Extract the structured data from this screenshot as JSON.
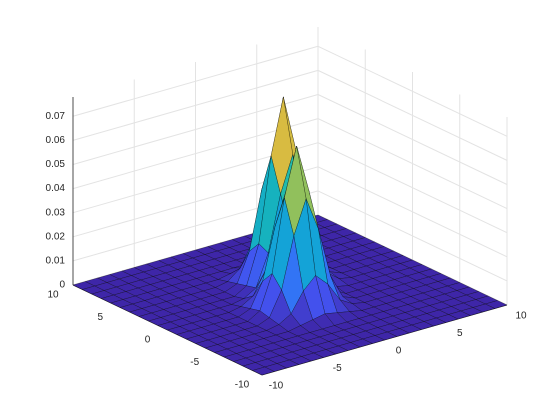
{
  "chart_data": {
    "type": "surface",
    "x": [
      -10,
      -9,
      -8,
      -7,
      -6,
      -5,
      -4,
      -3,
      -2,
      -1,
      0,
      1,
      2,
      3,
      4,
      5,
      6,
      7,
      8,
      9,
      10
    ],
    "y": [
      -10,
      -9,
      -8,
      -7,
      -6,
      -5,
      -4,
      -3,
      -2,
      -1,
      0,
      1,
      2,
      3,
      4,
      5,
      6,
      7,
      8,
      9,
      10
    ],
    "z": [
      [
        0,
        0,
        0,
        0,
        0,
        0,
        0,
        0,
        0,
        0,
        0,
        0,
        0,
        0,
        0,
        0,
        0,
        0,
        0,
        0,
        0
      ],
      [
        0,
        0,
        0,
        0,
        0,
        0,
        0,
        0,
        0,
        0,
        0,
        0,
        0,
        0,
        0,
        0,
        0,
        0,
        0,
        0,
        0
      ],
      [
        0,
        0,
        0,
        0,
        0,
        0,
        0,
        0,
        0,
        0,
        0,
        0,
        0,
        0,
        0,
        0,
        0,
        0,
        0,
        0,
        0
      ],
      [
        0,
        0,
        0,
        0,
        0,
        0,
        0,
        0,
        0,
        0,
        0,
        0,
        0,
        0,
        0,
        0,
        0,
        0,
        0,
        0,
        0
      ],
      [
        0,
        0,
        0,
        0,
        0,
        0,
        0,
        0,
        0,
        0,
        0,
        0,
        0,
        0,
        0,
        0,
        0,
        0,
        0,
        0,
        0
      ],
      [
        0,
        0,
        0,
        0,
        0,
        0,
        0,
        0.001,
        0.002,
        0.003,
        0.002,
        0.001,
        0,
        0,
        0,
        0,
        0,
        0,
        0,
        0,
        0
      ],
      [
        0,
        0,
        0,
        0,
        0,
        0,
        0.001,
        0.004,
        0.012,
        0.017,
        0.012,
        0.004,
        0.001,
        0,
        0,
        0,
        0,
        0,
        0,
        0,
        0
      ],
      [
        0,
        0,
        0,
        0,
        0,
        0,
        0.002,
        0.012,
        0.033,
        0.047,
        0.033,
        0.012,
        0.002,
        0,
        0,
        0,
        0,
        0,
        0,
        0,
        0
      ],
      [
        0,
        0,
        0,
        0,
        0,
        0,
        0.003,
        0.017,
        0.047,
        0.067,
        0.047,
        0.017,
        0.003,
        0,
        0,
        0,
        0,
        0,
        0,
        0,
        0
      ],
      [
        0,
        0,
        0,
        0,
        0,
        0,
        0.002,
        0.012,
        0.033,
        0.048,
        0.035,
        0.015,
        0.004,
        0.001,
        0,
        0,
        0,
        0,
        0,
        0,
        0
      ],
      [
        0,
        0,
        0,
        0,
        0,
        0,
        0.001,
        0.004,
        0.013,
        0.022,
        0.026,
        0.023,
        0.015,
        0.005,
        0.001,
        0,
        0,
        0,
        0,
        0,
        0
      ],
      [
        0,
        0,
        0,
        0,
        0,
        0,
        0,
        0.001,
        0.004,
        0.017,
        0.04,
        0.055,
        0.038,
        0.014,
        0.002,
        0,
        0,
        0,
        0,
        0,
        0
      ],
      [
        0,
        0,
        0,
        0,
        0,
        0,
        0,
        0,
        0.003,
        0.019,
        0.054,
        0.077,
        0.054,
        0.019,
        0.003,
        0,
        0,
        0,
        0,
        0,
        0
      ],
      [
        0,
        0,
        0,
        0,
        0,
        0,
        0,
        0,
        0.002,
        0.014,
        0.038,
        0.054,
        0.038,
        0.014,
        0.002,
        0,
        0,
        0,
        0,
        0,
        0
      ],
      [
        0,
        0,
        0,
        0,
        0,
        0,
        0,
        0,
        0.001,
        0.005,
        0.014,
        0.019,
        0.014,
        0.005,
        0.001,
        0,
        0,
        0,
        0,
        0,
        0
      ],
      [
        0,
        0,
        0,
        0,
        0,
        0,
        0,
        0,
        0,
        0.001,
        0.002,
        0.003,
        0.002,
        0.001,
        0,
        0,
        0,
        0,
        0,
        0,
        0
      ],
      [
        0,
        0,
        0,
        0,
        0,
        0,
        0,
        0,
        0,
        0,
        0,
        0,
        0,
        0,
        0,
        0,
        0,
        0,
        0,
        0,
        0
      ],
      [
        0,
        0,
        0,
        0,
        0,
        0,
        0,
        0,
        0,
        0,
        0,
        0,
        0,
        0,
        0,
        0,
        0,
        0,
        0,
        0,
        0
      ],
      [
        0,
        0,
        0,
        0,
        0,
        0,
        0,
        0,
        0,
        0,
        0,
        0,
        0,
        0,
        0,
        0,
        0,
        0,
        0,
        0,
        0
      ],
      [
        0,
        0,
        0,
        0,
        0,
        0,
        0,
        0,
        0,
        0,
        0,
        0,
        0,
        0,
        0,
        0,
        0,
        0,
        0,
        0,
        0
      ],
      [
        0,
        0,
        0,
        0,
        0,
        0,
        0,
        0,
        0,
        0,
        0,
        0,
        0,
        0,
        0,
        0,
        0,
        0,
        0,
        0,
        0
      ]
    ],
    "xlim": [
      -10,
      10
    ],
    "ylim": [
      -10,
      10
    ],
    "zlim": [
      0,
      0.078
    ],
    "xticks": [
      -10,
      -5,
      0,
      5,
      10
    ],
    "yticks": [
      -10,
      -5,
      0,
      5,
      10
    ],
    "zticks": [
      0,
      0.01,
      0.02,
      0.03,
      0.04,
      0.05,
      0.06,
      0.07
    ],
    "grid": true,
    "edge_color": "#000000",
    "colormap": [
      "#3e26a8",
      "#4352ee",
      "#2c7ff7",
      "#139fdd",
      "#17b8b4",
      "#5ac47d",
      "#b7bd46",
      "#f6ba3c",
      "#fadd2b",
      "#f9fb15"
    ]
  }
}
